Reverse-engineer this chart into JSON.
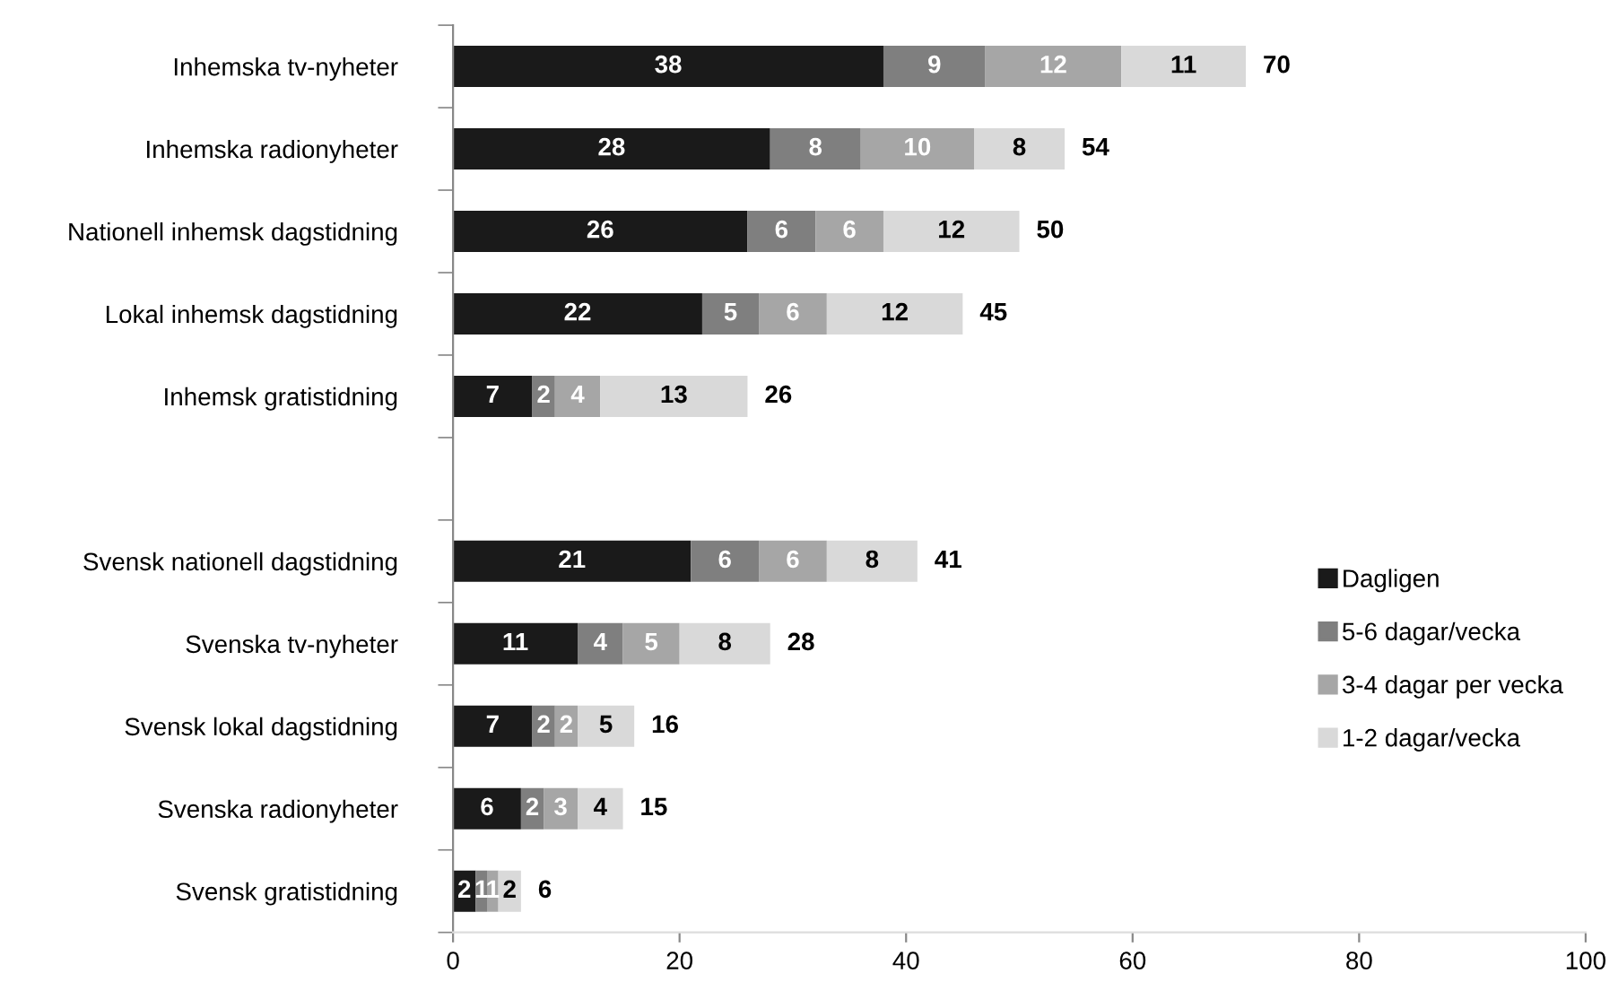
{
  "chart_data": {
    "type": "bar",
    "orientation": "horizontal",
    "stacked": true,
    "categories": [
      "Inhemska tv-nyheter",
      "Inhemska radionyheter",
      "Nationell inhemsk dagstidning",
      "Lokal inhemsk dagstidning",
      "Inhemsk gratistidning",
      null,
      "Svensk nationell dagstidning",
      "Svenska tv-nyheter",
      "Svensk lokal dagstidning",
      "Svenska radionyheter",
      "Svensk gratistidning"
    ],
    "series": [
      {
        "name": "Dagligen",
        "color": "#1a1a1a",
        "values": [
          38,
          28,
          26,
          22,
          7,
          null,
          21,
          11,
          7,
          6,
          2
        ]
      },
      {
        "name": "5-6 dagar/vecka",
        "color": "#7f7f7f",
        "values": [
          9,
          8,
          6,
          5,
          2,
          null,
          6,
          4,
          2,
          2,
          1
        ]
      },
      {
        "name": "3-4 dagar per vecka",
        "color": "#a6a6a6",
        "values": [
          12,
          10,
          6,
          6,
          4,
          null,
          6,
          5,
          2,
          3,
          1
        ]
      },
      {
        "name": "1-2 dagar/vecka",
        "color": "#d9d9d9",
        "values": [
          11,
          8,
          12,
          12,
          13,
          null,
          8,
          8,
          5,
          4,
          2
        ]
      }
    ],
    "totals": [
      "70",
      "54",
      "50",
      "45",
      "26",
      null,
      "41",
      "28",
      "16",
      "15",
      "6"
    ],
    "data_labels": true,
    "xlim": [
      0,
      100
    ],
    "xticks": [
      0,
      20,
      40,
      60,
      80,
      100
    ],
    "grid": false,
    "legend": "right"
  }
}
